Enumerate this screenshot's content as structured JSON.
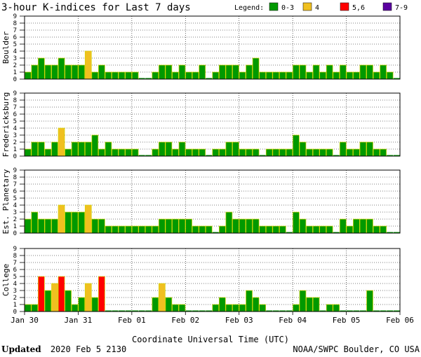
{
  "chart_data": {
    "type": "bar",
    "title": "3-hour K-indices for Last 7 days",
    "legend": {
      "label": "Legend:",
      "entries": [
        {
          "label": "0-3",
          "color": "#009900"
        },
        {
          "label": "4",
          "color": "#f0c020"
        },
        {
          "label": "5,6",
          "color": "#ff0000"
        },
        {
          "label": "7-9",
          "color": "#5a00a0"
        }
      ]
    },
    "xlabel": "Coordinate Universal Time (UTC)",
    "x_ticks": [
      "Jan 30",
      "Jan 31",
      "Feb 01",
      "Feb 02",
      "Feb 03",
      "Feb 04",
      "Feb 05",
      "Feb 06"
    ],
    "y_ticks": [
      "0",
      "1",
      "2",
      "3",
      "4",
      "5",
      "6",
      "7",
      "8",
      "9"
    ],
    "ylim": [
      0,
      9
    ],
    "grid": true,
    "intervals_per_day": 8,
    "panels": [
      {
        "name": "Boulder",
        "values": [
          1,
          2,
          3,
          2,
          2,
          3,
          2,
          2,
          2,
          4,
          1,
          2,
          1,
          1,
          1,
          1,
          1,
          0,
          0,
          1,
          2,
          2,
          1,
          2,
          1,
          1,
          2,
          0,
          1,
          2,
          2,
          2,
          1,
          2,
          3,
          1,
          1,
          1,
          1,
          1,
          2,
          2,
          1,
          2,
          1,
          2,
          1,
          2,
          1,
          1,
          2,
          2,
          1,
          2,
          1,
          0
        ]
      },
      {
        "name": "Fredericksburg",
        "values": [
          1,
          2,
          2,
          1,
          2,
          4,
          1,
          2,
          2,
          2,
          3,
          1,
          2,
          1,
          1,
          1,
          1,
          0,
          0,
          1,
          2,
          2,
          1,
          2,
          1,
          1,
          1,
          0,
          1,
          1,
          2,
          2,
          1,
          1,
          1,
          0,
          1,
          1,
          1,
          1,
          3,
          2,
          1,
          1,
          1,
          1,
          0,
          2,
          1,
          1,
          2,
          2,
          1,
          1,
          0,
          0
        ]
      },
      {
        "name": "Est. Planetary",
        "values": [
          2,
          3,
          2,
          2,
          2,
          4,
          3,
          3,
          3,
          4,
          2,
          2,
          1,
          1,
          1,
          1,
          1,
          1,
          1,
          1,
          2,
          2,
          2,
          2,
          2,
          1,
          1,
          1,
          0,
          1,
          3,
          2,
          2,
          2,
          2,
          1,
          1,
          1,
          1,
          0,
          3,
          2,
          1,
          1,
          1,
          1,
          0,
          2,
          1,
          2,
          2,
          2,
          1,
          1,
          0,
          0
        ]
      },
      {
        "name": "College",
        "values": [
          1,
          1,
          5,
          3,
          4,
          5,
          3,
          1,
          2,
          4,
          2,
          5,
          0,
          0,
          0,
          0,
          0,
          0,
          0,
          2,
          4,
          2,
          1,
          1,
          0,
          0,
          0,
          0,
          1,
          2,
          1,
          1,
          1,
          3,
          2,
          1,
          0,
          0,
          0,
          0,
          1,
          3,
          2,
          2,
          0,
          1,
          1,
          0,
          0,
          0,
          0,
          3,
          0,
          0,
          0,
          0
        ]
      }
    ]
  },
  "footer": {
    "updated_label": "Updated",
    "updated_value": "2020 Feb  5 2130",
    "source": "NOAA/SWPC Boulder, CO USA"
  }
}
